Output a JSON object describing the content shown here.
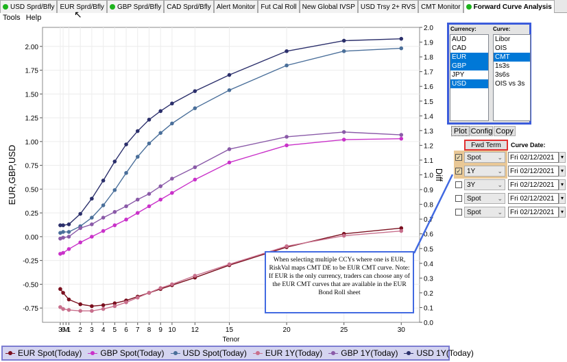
{
  "tabs": [
    {
      "label": "USD Sprd/Bfly",
      "dot": true,
      "active": false
    },
    {
      "label": "EUR Sprd/Bfly",
      "dot": false,
      "active": false
    },
    {
      "label": "GBP Sprd/Bfly",
      "dot": true,
      "active": false
    },
    {
      "label": "CAD Sprd/Bfly",
      "dot": false,
      "active": false
    },
    {
      "label": "Alert Monitor",
      "dot": false,
      "active": false
    },
    {
      "label": "Fut Cal Roll",
      "dot": false,
      "active": false
    },
    {
      "label": "New Global IVSP",
      "dot": false,
      "active": false
    },
    {
      "label": "USD Trsy 2+ RVS",
      "dot": false,
      "active": false
    },
    {
      "label": "CMT Monitor",
      "dot": false,
      "active": false
    },
    {
      "label": "Forward Curve Analysis",
      "dot": true,
      "active": true
    }
  ],
  "menu": {
    "tools": "Tools",
    "help": "Help"
  },
  "chart_data": {
    "type": "line",
    "xlabel": "Tenor",
    "ylabel": "EUR,GBP,USD",
    "y2label": "Diff",
    "x_ticks": [
      0.25,
      0.5,
      1,
      2,
      3,
      4,
      5,
      6,
      7,
      8,
      9,
      10,
      12,
      15,
      20,
      25,
      30
    ],
    "x_tick_labels": [
      "3",
      "6",
      "M",
      "1",
      "2",
      "3",
      "4",
      "5",
      "6",
      "7",
      "8",
      "9",
      "10",
      "12",
      "15",
      "20",
      "25",
      "30"
    ],
    "x_tick_positions": [
      0.25,
      0.5,
      0.75,
      1,
      2,
      3,
      4,
      5,
      6,
      7,
      8,
      9,
      10,
      12,
      15,
      20,
      25,
      30
    ],
    "xlim": [
      -1.3,
      31.6
    ],
    "ylim": [
      -0.9,
      2.2
    ],
    "y2lim": [
      0,
      2.0
    ],
    "y_ticks": [
      -0.75,
      -0.5,
      -0.25,
      0.0,
      0.25,
      0.5,
      0.75,
      1.0,
      1.25,
      1.5,
      1.75,
      2.0
    ],
    "y_tick_labels": [
      "-0.75",
      "-0.50",
      "-0.25",
      "0.00",
      "0.25",
      "0.50",
      "0.75",
      "1.00",
      "1.25",
      "1.50",
      "1.75",
      "2.00"
    ],
    "y2_ticks": [
      0,
      0.1,
      0.2,
      0.3,
      0.4,
      0.5,
      0.6,
      0.7,
      0.8,
      0.9,
      1.0,
      1.1,
      1.2,
      1.3,
      1.4,
      1.5,
      1.6,
      1.7,
      1.8,
      1.9,
      2.0
    ],
    "y2_tick_labels": [
      "0.0",
      "0.1",
      "0.2",
      "0.3",
      "0.4",
      "0.5",
      "0.6",
      "0.7",
      "0.8",
      "0.9",
      "1.0",
      "1.1",
      "1.2",
      "1.3",
      "1.4",
      "1.5",
      "1.6",
      "1.7",
      "1.8",
      "1.9",
      "2.0"
    ],
    "grid": true,
    "legend_position": "bottom",
    "x": [
      0.25,
      0.5,
      1,
      2,
      3,
      4,
      5,
      6,
      7,
      8,
      9,
      10,
      12,
      15,
      20,
      25,
      30
    ],
    "series": [
      {
        "name": "EUR Spot(Today)",
        "color": "#7a0f1e",
        "values": [
          -0.55,
          -0.59,
          -0.66,
          -0.71,
          -0.73,
          -0.72,
          -0.7,
          -0.67,
          -0.63,
          -0.59,
          -0.55,
          -0.51,
          -0.43,
          -0.3,
          -0.11,
          0.03,
          0.09
        ]
      },
      {
        "name": "GBP Spot(Today)",
        "color": "#c931c9",
        "values": [
          -0.18,
          -0.17,
          -0.13,
          -0.06,
          0.0,
          0.06,
          0.12,
          0.18,
          0.25,
          0.32,
          0.39,
          0.46,
          0.6,
          0.78,
          0.96,
          1.02,
          1.03
        ]
      },
      {
        "name": "USD Spot(Today)",
        "color": "#4a6f9a",
        "values": [
          0.04,
          0.05,
          0.05,
          0.11,
          0.2,
          0.33,
          0.49,
          0.67,
          0.84,
          0.98,
          1.09,
          1.19,
          1.35,
          1.54,
          1.8,
          1.95,
          1.98
        ]
      },
      {
        "name": "EUR 1Y(Today)",
        "color": "#c86f8c",
        "values": [
          -0.74,
          -0.76,
          -0.77,
          -0.78,
          -0.78,
          -0.76,
          -0.73,
          -0.69,
          -0.64,
          -0.59,
          -0.54,
          -0.5,
          -0.41,
          -0.29,
          -0.1,
          0.01,
          0.06
        ]
      },
      {
        "name": "GBP 1Y(Today)",
        "color": "#8a5aa8",
        "values": [
          -0.02,
          -0.01,
          0.0,
          0.09,
          0.13,
          0.2,
          0.26,
          0.32,
          0.39,
          0.45,
          0.53,
          0.61,
          0.73,
          0.92,
          1.05,
          1.1,
          1.07
        ]
      },
      {
        "name": "USD 1Y(Today)",
        "color": "#2b2f6b",
        "values": [
          0.12,
          0.12,
          0.13,
          0.24,
          0.4,
          0.59,
          0.79,
          0.97,
          1.11,
          1.23,
          1.32,
          1.4,
          1.53,
          1.7,
          1.95,
          2.06,
          2.08
        ]
      }
    ]
  },
  "callout": {
    "text": "When selecting multiple CCYs where one is EUR, RiskVal maps CMT DE to be EUR CMT curve. Note: If EUR is the only currency, traders can choose any of the EUR CMT curves that are available in the EUR Bond Roll sheet"
  },
  "panel": {
    "currency_label": "Currency:",
    "curve_label": "Curve:",
    "currencies": [
      {
        "label": "AUD",
        "selected": false
      },
      {
        "label": "CAD",
        "selected": false
      },
      {
        "label": "EUR",
        "selected": true
      },
      {
        "label": "GBP",
        "selected": true
      },
      {
        "label": "JPY",
        "selected": false
      },
      {
        "label": "USD",
        "selected": true
      }
    ],
    "curves": [
      {
        "label": "Libor",
        "selected": false
      },
      {
        "label": "OIS",
        "selected": false
      },
      {
        "label": "CMT",
        "selected": true
      },
      {
        "label": "1s3s",
        "selected": false
      },
      {
        "label": "3s6s",
        "selected": false
      },
      {
        "label": "OIS vs 3s",
        "selected": false
      }
    ]
  },
  "buttons": {
    "plot": "Plot",
    "config": "Config",
    "copy": "Copy",
    "fwd_term": "Fwd Term"
  },
  "curve_date_label": "Curve Date:",
  "curve_rows": [
    {
      "checked": true,
      "term": "Spot",
      "date": "Fri 02/12/2021"
    },
    {
      "checked": true,
      "term": "1Y",
      "date": "Fri 02/12/2021"
    },
    {
      "checked": false,
      "term": "3Y",
      "date": "Fri 02/12/2021"
    },
    {
      "checked": false,
      "term": "Spot",
      "date": "Fri 02/12/2021"
    },
    {
      "checked": false,
      "term": "Spot",
      "date": "Fri 02/12/2021"
    }
  ]
}
